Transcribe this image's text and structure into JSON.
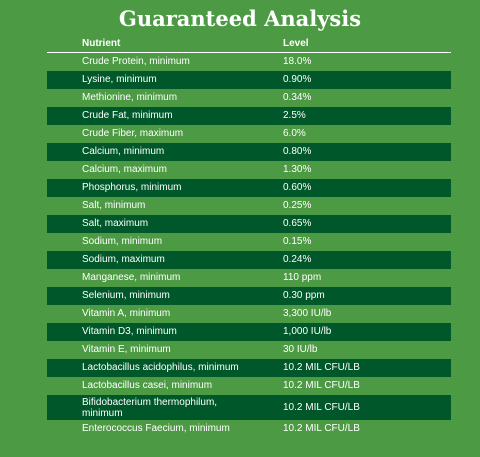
{
  "title": "Guaranteed Analysis",
  "header": {
    "nutrient": "Nutrient",
    "level": "Level"
  },
  "rows": [
    {
      "nutrient": "Crude Protein, minimum",
      "level": "18.0%"
    },
    {
      "nutrient": "Lysine, minimum",
      "level": "0.90%"
    },
    {
      "nutrient": "Methionine, minimum",
      "level": "0.34%"
    },
    {
      "nutrient": "Crude Fat, minimum",
      "level": "2.5%"
    },
    {
      "nutrient": "Crude Fiber, maximum",
      "level": "6.0%"
    },
    {
      "nutrient": "Calcium, minimum",
      "level": "0.80%"
    },
    {
      "nutrient": "Calcium, maximum",
      "level": "1.30%"
    },
    {
      "nutrient": "Phosphorus, minimum",
      "level": "0.60%"
    },
    {
      "nutrient": "Salt, minimum",
      "level": "0.25%"
    },
    {
      "nutrient": "Salt, maximum",
      "level": "0.65%"
    },
    {
      "nutrient": "Sodium, minimum",
      "level": "0.15%"
    },
    {
      "nutrient": "Sodium, maximum",
      "level": "0.24%"
    },
    {
      "nutrient": "Manganese, minimum",
      "level": "110 ppm"
    },
    {
      "nutrient": "Selenium, minimum",
      "level": "0.30 ppm"
    },
    {
      "nutrient": "Vitamin A, minimum",
      "level": "3,300 IU/lb"
    },
    {
      "nutrient": "Vitamin D3, minimum",
      "level": "1,000 IU/lb"
    },
    {
      "nutrient": "Vitamin E, minimum",
      "level": "30 IU/lb"
    },
    {
      "nutrient": "Lactobacillus acidophilus, minimum",
      "level": "10.2 MIL CFU/LB"
    },
    {
      "nutrient": "Lactobacillus casei, minimum",
      "level": "10.2 MIL CFU/LB"
    },
    {
      "nutrient": "Bifidobacterium thermophilum, minimum",
      "level": "10.2 MIL CFU/LB"
    },
    {
      "nutrient": "Enterococcus Faecium, minimum",
      "level": "10.2 MIL CFU/LB"
    }
  ],
  "colors": {
    "background": "#4d9a44",
    "row_dark": "#00582a",
    "text": "#ffffff"
  }
}
